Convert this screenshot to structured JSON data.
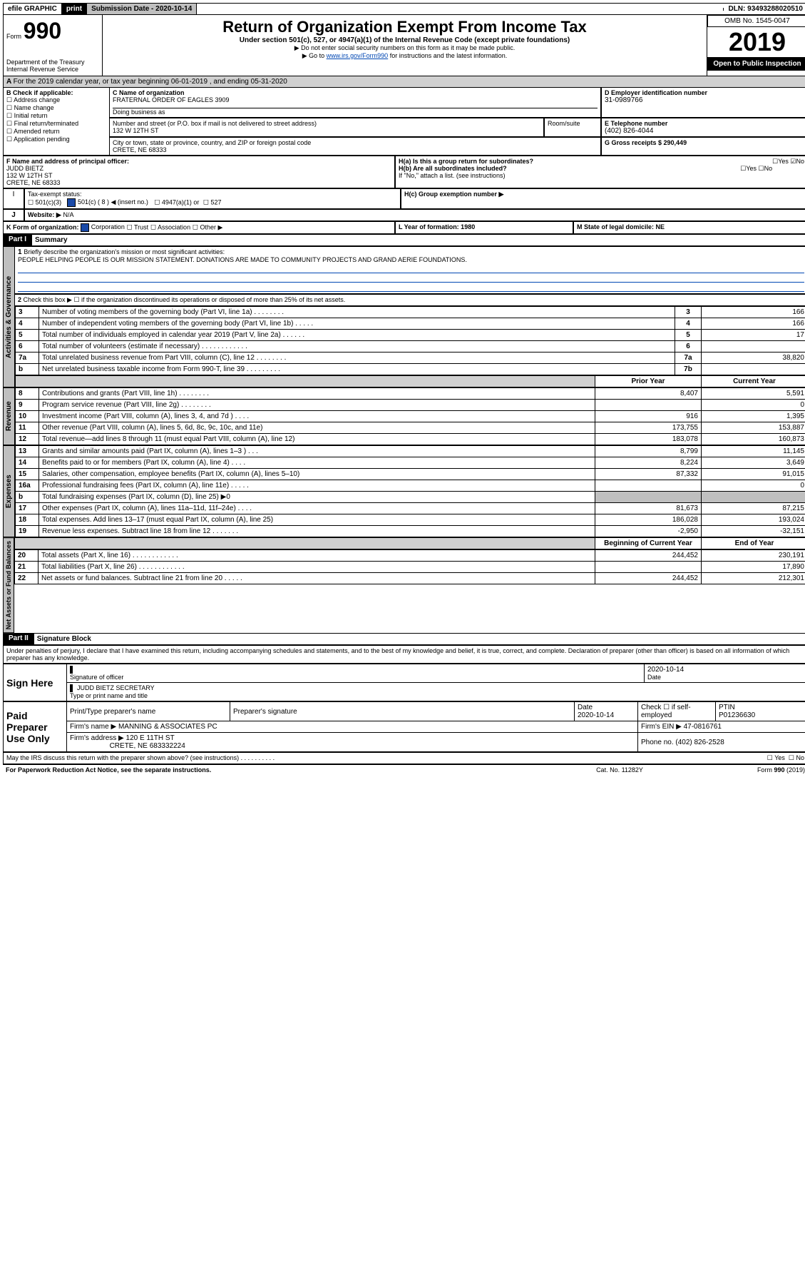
{
  "topbar": {
    "efile": "efile GRAPHIC",
    "print": "print",
    "submission_label": "Submission Date - 2020-10-14",
    "dln_label": "DLN: 93493288020510"
  },
  "header": {
    "form_word": "Form",
    "form_num": "990",
    "title": "Return of Organization Exempt From Income Tax",
    "sub1": "Under section 501(c), 527, or 4947(a)(1) of the Internal Revenue Code (except private foundations)",
    "sub2": "▶ Do not enter social security numbers on this form as it may be made public.",
    "sub3_pre": "▶ Go to ",
    "sub3_link": "www.irs.gov/Form990",
    "sub3_post": " for instructions and the latest information.",
    "dept": "Department of the Treasury",
    "irs": "Internal Revenue Service",
    "omb": "OMB No. 1545-0047",
    "year": "2019",
    "open": "Open to Public Inspection"
  },
  "sectA": {
    "line": "For the 2019 calendar year, or tax year beginning 06-01-2019   , and ending 05-31-2020"
  },
  "boxB": {
    "head": "B Check if applicable:",
    "o1": "Address change",
    "o2": "Name change",
    "o3": "Initial return",
    "o4": "Final return/terminated",
    "o5": "Amended return",
    "o6": "Application pending"
  },
  "boxC": {
    "head": "C Name of organization",
    "name": "FRATERNAL ORDER OF EAGLES 3909",
    "dba": "Doing business as",
    "addr_label": "Number and street (or P.O. box if mail is not delivered to street address)",
    "room": "Room/suite",
    "addr": "132 W 12TH ST",
    "city_label": "City or town, state or province, country, and ZIP or foreign postal code",
    "city": "CRETE, NE  68333"
  },
  "boxD": {
    "head": "D Employer identification number",
    "val": "31-0989766"
  },
  "boxE": {
    "head": "E Telephone number",
    "val": "(402) 826-4044"
  },
  "boxG": {
    "head": "G Gross receipts $ 290,449"
  },
  "boxF": {
    "head": "F  Name and address of principal officer:",
    "name": "JUDD BIETZ",
    "addr1": "132 W 12TH ST",
    "addr2": "CRETE, NE  68333"
  },
  "boxH": {
    "ha": "H(a)  Is this a group return for subordinates?",
    "hb": "H(b)  Are all subordinates included?",
    "hb_note": "If \"No,\" attach a list. (see instructions)",
    "hc": "H(c)  Group exemption number ▶",
    "yes": "Yes",
    "no": "No"
  },
  "boxI": {
    "head": "Tax-exempt status:",
    "o1": "501(c)(3)",
    "o2": "501(c) ( 8 ) ◀ (insert no.)",
    "o3": "4947(a)(1) or",
    "o4": "527"
  },
  "boxJ": {
    "head": "Website: ▶",
    "val": "N/A"
  },
  "boxK": {
    "head": "K Form of organization:",
    "o1": "Corporation",
    "o2": "Trust",
    "o3": "Association",
    "o4": "Other ▶"
  },
  "boxL": {
    "head": "L Year of formation: 1980"
  },
  "boxM": {
    "head": "M State of legal domicile: NE"
  },
  "part1": {
    "bar": "Part I",
    "title": "Summary",
    "l1": "Briefly describe the organization's mission or most significant activities:",
    "l1v": "PEOPLE HELPING PEOPLE IS OUR MISSION STATEMENT. DONATIONS ARE MADE TO COMMUNITY PROJECTS AND GRAND AERIE FOUNDATIONS.",
    "l2": "Check this box ▶ ☐  if the organization discontinued its operations or disposed of more than 25% of its net assets.",
    "rows": [
      {
        "n": "3",
        "t": "Number of voting members of the governing body (Part VI, line 1a)   .   .   .   .   .   .   .   .",
        "rn": "3",
        "v": "166"
      },
      {
        "n": "4",
        "t": "Number of independent voting members of the governing body (Part VI, line 1b)   .   .   .   .   .",
        "rn": "4",
        "v": "166"
      },
      {
        "n": "5",
        "t": "Total number of individuals employed in calendar year 2019 (Part V, line 2a)   .   .   .   .   .   .",
        "rn": "5",
        "v": "17"
      },
      {
        "n": "6",
        "t": "Total number of volunteers (estimate if necessary)   .   .   .   .   .   .   .   .   .   .   .   .",
        "rn": "6",
        "v": ""
      },
      {
        "n": "7a",
        "t": "Total unrelated business revenue from Part VIII, column (C), line 12   .   .   .   .   .   .   .   .",
        "rn": "7a",
        "v": "38,820"
      },
      {
        "n": "b",
        "t": "Net unrelated business taxable income from Form 990-T, line 39   .   .   .   .   .   .   .   .   .",
        "rn": "7b",
        "v": ""
      }
    ],
    "colL": "Prior Year",
    "colR": "Current Year",
    "rev": [
      {
        "n": "8",
        "t": "Contributions and grants (Part VIII, line 1h)   .   .   .   .   .   .   .   .",
        "p": "8,407",
        "c": "5,591"
      },
      {
        "n": "9",
        "t": "Program service revenue (Part VIII, line 2g)   .   .   .   .   .   .   .   .",
        "p": "",
        "c": "0"
      },
      {
        "n": "10",
        "t": "Investment income (Part VIII, column (A), lines 3, 4, and 7d )   .   .   .   .",
        "p": "916",
        "c": "1,395"
      },
      {
        "n": "11",
        "t": "Other revenue (Part VIII, column (A), lines 5, 6d, 8c, 9c, 10c, and 11e)",
        "p": "173,755",
        "c": "153,887"
      },
      {
        "n": "12",
        "t": "Total revenue—add lines 8 through 11 (must equal Part VIII, column (A), line 12)",
        "p": "183,078",
        "c": "160,873"
      }
    ],
    "exp": [
      {
        "n": "13",
        "t": "Grants and similar amounts paid (Part IX, column (A), lines 1–3 )   .   .   .",
        "p": "8,799",
        "c": "11,145"
      },
      {
        "n": "14",
        "t": "Benefits paid to or for members (Part IX, column (A), line 4)   .   .   .   .",
        "p": "8,224",
        "c": "3,649"
      },
      {
        "n": "15",
        "t": "Salaries, other compensation, employee benefits (Part IX, column (A), lines 5–10)",
        "p": "87,332",
        "c": "91,015"
      },
      {
        "n": "16a",
        "t": "Professional fundraising fees (Part IX, column (A), line 11e)   .   .   .   .   .",
        "p": "",
        "c": "0"
      },
      {
        "n": "b",
        "t": "Total fundraising expenses (Part IX, column (D), line 25) ▶0",
        "p": null,
        "c": null
      },
      {
        "n": "17",
        "t": "Other expenses (Part IX, column (A), lines 11a–11d, 11f–24e)   .   .   .   .",
        "p": "81,673",
        "c": "87,215"
      },
      {
        "n": "18",
        "t": "Total expenses. Add lines 13–17 (must equal Part IX, column (A), line 25)",
        "p": "186,028",
        "c": "193,024"
      },
      {
        "n": "19",
        "t": "Revenue less expenses. Subtract line 18 from line 12   .   .   .   .   .   .   .",
        "p": "-2,950",
        "c": "-32,151"
      }
    ],
    "colL2": "Beginning of Current Year",
    "colR2": "End of Year",
    "net": [
      {
        "n": "20",
        "t": "Total assets (Part X, line 16)   .   .   .   .   .   .   .   .   .   .   .   .",
        "p": "244,452",
        "c": "230,191"
      },
      {
        "n": "21",
        "t": "Total liabilities (Part X, line 26)   .   .   .   .   .   .   .   .   .   .   .   .",
        "p": "",
        "c": "17,890"
      },
      {
        "n": "22",
        "t": "Net assets or fund balances. Subtract line 21 from line 20   .   .   .   .   .",
        "p": "244,452",
        "c": "212,301"
      }
    ]
  },
  "part2": {
    "bar": "Part II",
    "title": "Signature Block",
    "decl": "Under penalties of perjury, I declare that I have examined this return, including accompanying schedules and statements, and to the best of my knowledge and belief, it is true, correct, and complete. Declaration of preparer (other than officer) is based on all information of which preparer has any knowledge.",
    "sign": "Sign Here",
    "sig_date": "2020-10-14",
    "sig_lbl": "Signature of officer",
    "date_lbl": "Date",
    "name": "JUDD BIETZ  SECRETARY",
    "name_lbl": "Type or print name and title",
    "paid": "Paid Preparer Use Only",
    "p_name_lbl": "Print/Type preparer's name",
    "p_sig_lbl": "Preparer's signature",
    "p_date_lbl": "Date",
    "p_date": "2020-10-14",
    "p_check": "Check ☐ if self-employed",
    "p_ptin_lbl": "PTIN",
    "p_ptin": "P01236630",
    "firm_lbl": "Firm's name    ▶",
    "firm": "MANNING & ASSOCIATES PC",
    "ein_lbl": "Firm's EIN ▶ 47-0816761",
    "addr_lbl": "Firm's address ▶",
    "addr1": "120 E 11TH ST",
    "addr2": "CRETE, NE  683332224",
    "phone": "Phone no. (402) 826-2528",
    "discuss": "May the IRS discuss this return with the preparer shown above? (see instructions)   .   .   .   .   .   .   .   .   .   .",
    "yes": "Yes",
    "no": "No"
  },
  "footer": {
    "left": "For Paperwork Reduction Act Notice, see the separate instructions.",
    "mid": "Cat. No. 11282Y",
    "right": "Form 990 (2019)"
  },
  "sidebars": {
    "s1": "Activities & Governance",
    "s2": "Revenue",
    "s3": "Expenses",
    "s4": "Net Assets or Fund Balances"
  }
}
